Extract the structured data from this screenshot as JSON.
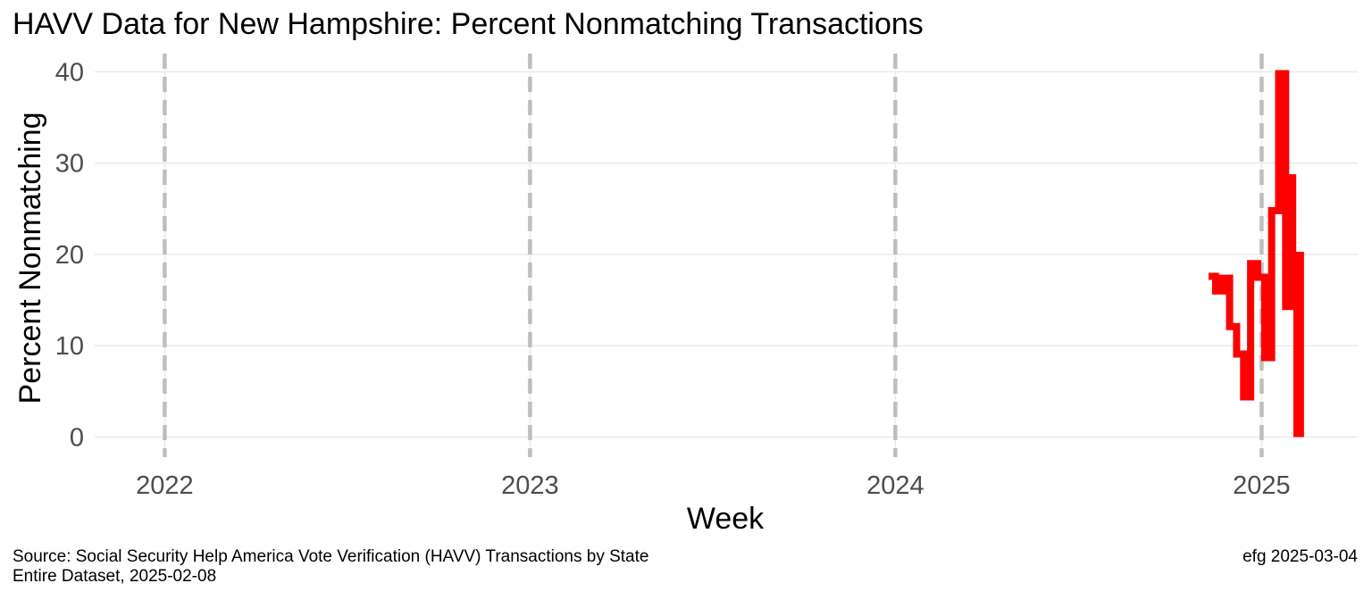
{
  "chart_data": {
    "type": "line",
    "title": "HAVV Data for New Hampshire:  Percent Nonmatching Transactions",
    "xlabel": "Week",
    "ylabel": "Percent Nonmatching",
    "xlim": [
      "2021-10-23",
      "2025-04-07"
    ],
    "ylim": [
      -2.2,
      42.0
    ],
    "x_ticks": [
      "2022-01-01",
      "2023-01-01",
      "2024-01-01",
      "2025-01-01"
    ],
    "x_tick_labels": [
      "2022",
      "2023",
      "2024",
      "2025"
    ],
    "y_ticks": [
      0,
      10,
      20,
      30,
      40
    ],
    "y_tick_labels": [
      "0",
      "10",
      "20",
      "30",
      "40"
    ],
    "year_markers": [
      "2022-01-01",
      "2023-01-01",
      "2024-01-01",
      "2025-01-01"
    ],
    "grid": true,
    "legend": "none",
    "series_color": "#ff0000",
    "marker_color": "#bebebe",
    "grid_color": "#ebebeb",
    "series": [
      {
        "x": [
          "2024-11-09",
          "2024-11-16",
          "2024-11-23",
          "2024-11-30",
          "2024-12-07",
          "2024-12-14",
          "2024-12-21",
          "2024-12-28",
          "2025-01-04",
          "2025-01-11",
          "2025-01-18",
          "2025-01-25",
          "2025-02-01"
        ],
        "y": [
          17.6,
          16.0,
          17.4,
          12.1,
          9.1,
          4.4,
          19.0,
          17.5,
          8.7,
          24.8,
          39.8,
          14.3,
          28.4
        ]
      },
      {
        "x": [
          "2025-02-01",
          "2025-02-07"
        ],
        "y": [
          19.7,
          0.0
        ],
        "note_style": "thick"
      }
    ]
  },
  "caption": {
    "source_line1": "Source:  Social Security Help America Vote Verification (HAVV) Transactions by State",
    "source_line2": "Entire Dataset, 2025-02-08",
    "credit": "efg 2025-03-04"
  }
}
